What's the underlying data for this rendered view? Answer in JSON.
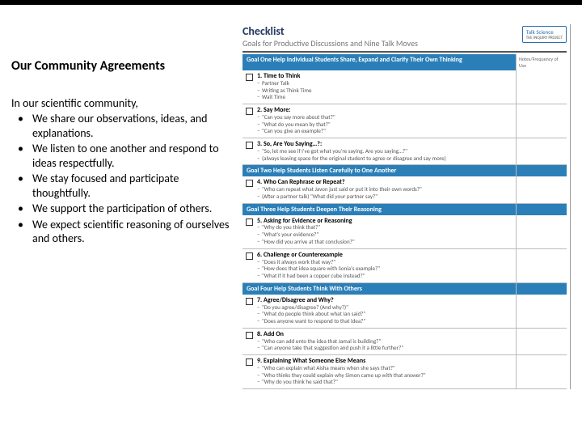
{
  "colors": {
    "goal_bar": "#2a7fb8",
    "header_text": "#223a5e",
    "sub_text": "#777777",
    "body_text": "#000000",
    "muted": "#555555",
    "border": "#bbbbbb"
  },
  "left": {
    "title": "Our Community Agreements",
    "intro": "In our scientific community,",
    "bullets": [
      "We share our observations, ideas, and explanations.",
      "We listen to one another and respond to ideas respectfully.",
      "We stay focused and participate thoughtfully.",
      "We support the participation of others.",
      "We expect scientific reasoning of ourselves and others."
    ]
  },
  "checklist": {
    "word": "Checklist",
    "subtitle": "Goals for Productive Discussions and Nine Talk Moves",
    "badge_top": "Talk Science",
    "badge_sub": "THE INQUIRY PROJECT",
    "notes_header": "Notes/Frequency of Use",
    "goals": [
      {
        "label": "Goal One Help Individual Students Share, Expand and Clarify Their Own Thinking",
        "items": [
          {
            "num": "1.",
            "title": "Time to Think",
            "subs": [
              "Partner Talk",
              "Writing as Think Time",
              "Wait Time"
            ]
          },
          {
            "num": "2.",
            "title": "Say More:",
            "subs": [
              "\"Can you say more about that?\"",
              "\"What do you mean by that?\"",
              "\"Can you give an example?\""
            ]
          },
          {
            "num": "3.",
            "title": "So, Are You Saying…?:",
            "subs": [
              "\"So, let me see if I've got what you're saying. Are you saying…?\"",
              "(always leaving space for the original student to agree or disagree and say more)"
            ]
          }
        ]
      },
      {
        "label": "Goal Two Help Students Listen Carefully to One Another",
        "items": [
          {
            "num": "4.",
            "title": "Who Can Rephrase or Repeat?",
            "subs": [
              "\"Who can repeat what Javon just said or put it into their own words?\"",
              "(After a partner talk) \"What did your partner say?\""
            ]
          }
        ]
      },
      {
        "label": "Goal Three Help Students Deepen Their Reasoning",
        "items": [
          {
            "num": "5.",
            "title": "Asking for Evidence or Reasoning",
            "subs": [
              "\"Why do you think that?\"",
              "\"What's your evidence?\"",
              "\"How did you arrive at that conclusion?\""
            ]
          },
          {
            "num": "6.",
            "title": "Challenge or Counterexample",
            "subs": [
              "\"Does it always work that way?\"",
              "\"How does that idea square with Sonia's example?\"",
              "\"What if it had been a copper cube instead?\""
            ]
          }
        ]
      },
      {
        "label": "Goal Four Help Students Think With Others",
        "items": [
          {
            "num": "7.",
            "title": "Agree/Disagree and Why?",
            "subs": [
              "\"Do you agree/disagree? (And why?)\"",
              "\"What do people think about what Ian said?\"",
              "\"Does anyone want to respond to that idea?\""
            ]
          },
          {
            "num": "8.",
            "title": "Add On",
            "subs": [
              "\"Who can add onto the idea that Jamal is building?\"",
              "\"Can anyone take that suggestion and push it a little further?\""
            ]
          },
          {
            "num": "9.",
            "title": "Explaining What Someone Else Means",
            "subs": [
              "\"Who can explain what Aisha means when she says that?\"",
              "\"Who thinks they could explain why Simon came up with that answer?\"",
              "\"Why do you think he said that?\""
            ]
          }
        ]
      }
    ]
  }
}
